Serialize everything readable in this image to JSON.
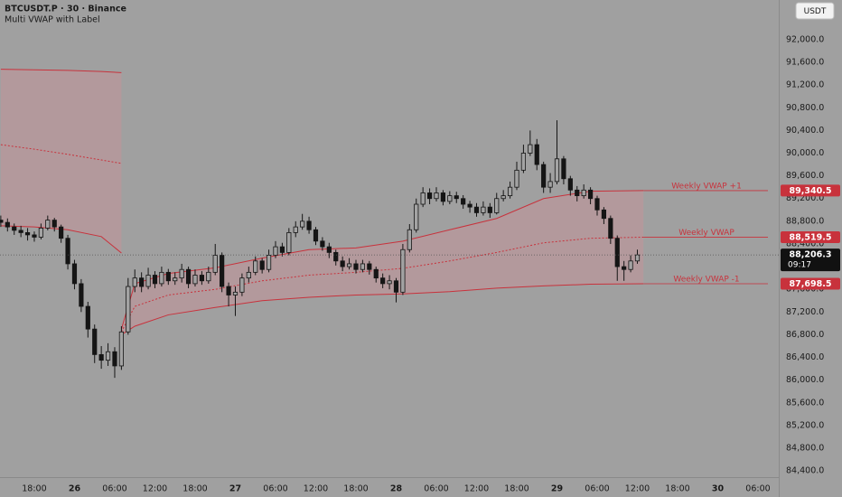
{
  "chart_data": {
    "type": "candlestick",
    "title": "BTCUSDT.P · 30 · Binance",
    "subtitle": "Multi VWAP with Label",
    "currency_button": "USDT",
    "candle_color": "#151515",
    "up_fill": "#a3a3a3",
    "background": "#a0a0a0",
    "band_color": "#c8323c",
    "band_fill": "#b9979b",
    "grid": false,
    "xlim": [
      12.88,
      129.1
    ],
    "ylim": [
      84290,
      92700
    ],
    "xticks": [
      {
        "value": 18,
        "label": "18:00"
      },
      {
        "value": 24,
        "label": "26"
      },
      {
        "value": 30,
        "label": "06:00"
      },
      {
        "value": 36,
        "label": "12:00"
      },
      {
        "value": 42,
        "label": "18:00"
      },
      {
        "value": 48,
        "label": "27"
      },
      {
        "value": 54,
        "label": "06:00"
      },
      {
        "value": 60,
        "label": "12:00"
      },
      {
        "value": 66,
        "label": "18:00"
      },
      {
        "value": 72,
        "label": "28"
      },
      {
        "value": 78,
        "label": "06:00"
      },
      {
        "value": 84,
        "label": "12:00"
      },
      {
        "value": 90,
        "label": "18:00"
      },
      {
        "value": 96,
        "label": "29"
      },
      {
        "value": 102,
        "label": "06:00"
      },
      {
        "value": 108,
        "label": "12:00"
      },
      {
        "value": 114,
        "label": "18:00"
      },
      {
        "value": 120,
        "label": "30"
      },
      {
        "value": 126,
        "label": "06:00"
      }
    ],
    "day_ticks": [
      1,
      5,
      9,
      13,
      17
    ],
    "yticks": [
      {
        "value": 84400,
        "label": "84,400.0"
      },
      {
        "value": 84800,
        "label": "84,800.0"
      },
      {
        "value": 85200,
        "label": "85,200.0"
      },
      {
        "value": 85600,
        "label": "85,600.0"
      },
      {
        "value": 86000,
        "label": "86,000.0"
      },
      {
        "value": 86400,
        "label": "86,400.0"
      },
      {
        "value": 86800,
        "label": "86,800.0"
      },
      {
        "value": 87200,
        "label": "87,200.0"
      },
      {
        "value": 87600,
        "label": "87,600.0"
      },
      {
        "value": 88000,
        "label": "88,000.0"
      },
      {
        "value": 88400,
        "label": "88,400.0"
      },
      {
        "value": 88800,
        "label": "88,800.0"
      },
      {
        "value": 89200,
        "label": "89,200.0"
      },
      {
        "value": 89600,
        "label": "89,600.0"
      },
      {
        "value": 90000,
        "label": "90,000.0"
      },
      {
        "value": 90400,
        "label": "90,400.0"
      },
      {
        "value": 90800,
        "label": "90,800.0"
      },
      {
        "value": 91200,
        "label": "91,200.0"
      },
      {
        "value": 91600,
        "label": "91,600.0"
      },
      {
        "value": 92000,
        "label": "92,000.0"
      }
    ],
    "x": [
      13,
      14,
      15,
      16,
      17,
      18,
      19,
      20,
      21,
      22,
      23,
      24,
      25,
      26,
      27,
      28,
      29,
      30,
      31,
      32,
      33,
      34,
      35,
      36,
      37,
      38,
      39,
      40,
      41,
      42,
      43,
      44,
      45,
      46,
      47,
      48,
      49,
      50,
      51,
      52,
      53,
      54,
      55,
      56,
      57,
      58,
      59,
      60,
      61,
      62,
      63,
      64,
      65,
      66,
      67,
      68,
      69,
      70,
      71,
      72,
      73,
      74,
      75,
      76,
      77,
      78,
      79,
      80,
      81,
      82,
      83,
      84,
      85,
      86,
      87,
      88,
      89,
      90,
      91,
      92,
      93,
      94,
      95,
      96,
      97,
      98,
      99,
      100,
      101,
      102,
      103,
      104,
      105,
      106,
      107,
      108
    ],
    "open": [
      88820,
      88780,
      88700,
      88640,
      88600,
      88560,
      88520,
      88680,
      88820,
      88700,
      88500,
      88050,
      87700,
      87300,
      86900,
      86450,
      86350,
      86500,
      86250,
      86850,
      87650,
      87800,
      87650,
      87850,
      87700,
      87900,
      87750,
      87800,
      87950,
      87700,
      87850,
      87750,
      87900,
      88200,
      87650,
      87500,
      87550,
      87800,
      87900,
      88100,
      87950,
      88200,
      88350,
      88250,
      88600,
      88700,
      88800,
      88650,
      88450,
      88350,
      88250,
      88100,
      88000,
      88050,
      87950,
      88050,
      87950,
      87800,
      87700,
      87750,
      87550,
      88300,
      88650,
      89100,
      89300,
      89200,
      89300,
      89150,
      89250,
      89200,
      89100,
      89050,
      88950,
      89050,
      88950,
      89200,
      89250,
      89400,
      89700,
      90000,
      90150,
      89800,
      89400,
      89500,
      89900,
      89550,
      89350,
      89250,
      89350,
      89200,
      89000,
      88850,
      88500,
      88000,
      87950,
      88100
    ],
    "high": [
      88900,
      88850,
      88760,
      88720,
      88680,
      88620,
      88760,
      88900,
      88860,
      88740,
      88560,
      88120,
      87780,
      87380,
      86980,
      86600,
      86650,
      86580,
      86950,
      87800,
      87950,
      87900,
      87980,
      87920,
      88000,
      87960,
      87900,
      88050,
      88000,
      87950,
      87920,
      88000,
      88400,
      88250,
      87720,
      87650,
      87880,
      88000,
      88180,
      88150,
      88300,
      88450,
      88420,
      88680,
      88800,
      88930,
      88880,
      88700,
      88520,
      88420,
      88300,
      88180,
      88150,
      88120,
      88120,
      88100,
      88000,
      87880,
      87850,
      87800,
      88400,
      88750,
      89200,
      89400,
      89380,
      89400,
      89350,
      89330,
      89320,
      89260,
      89160,
      89120,
      89150,
      89120,
      89300,
      89350,
      89500,
      89850,
      90150,
      90400,
      90250,
      89850,
      89650,
      90580,
      89950,
      89600,
      89420,
      89450,
      89400,
      89250,
      89050,
      88900,
      88550,
      88100,
      88200,
      88300
    ],
    "low": [
      88700,
      88620,
      88560,
      88520,
      88460,
      88440,
      88480,
      88640,
      88620,
      88420,
      87950,
      87600,
      87200,
      86750,
      86300,
      86200,
      86250,
      86040,
      86180,
      86800,
      87550,
      87550,
      87600,
      87620,
      87650,
      87680,
      87680,
      87720,
      87620,
      87650,
      87680,
      87700,
      87850,
      87550,
      87300,
      87130,
      87480,
      87720,
      87850,
      87880,
      87900,
      88150,
      88180,
      88200,
      88520,
      88650,
      88580,
      88380,
      88280,
      88150,
      88020,
      87920,
      87950,
      87880,
      87900,
      87860,
      87720,
      87620,
      87600,
      87370,
      87500,
      88250,
      88600,
      89050,
      89100,
      89150,
      89080,
      89100,
      89120,
      89020,
      88950,
      88880,
      88900,
      88860,
      88920,
      89150,
      89200,
      89350,
      89650,
      89950,
      89700,
      89300,
      89300,
      89450,
      89450,
      89250,
      89150,
      89200,
      89100,
      88900,
      88750,
      88400,
      87750,
      87750,
      87900,
      88050
    ],
    "close": [
      88780,
      88700,
      88640,
      88600,
      88560,
      88520,
      88680,
      88820,
      88700,
      88500,
      88050,
      87700,
      87300,
      86900,
      86450,
      86350,
      86500,
      86250,
      86850,
      87650,
      87800,
      87650,
      87850,
      87700,
      87900,
      87750,
      87800,
      87950,
      87700,
      87850,
      87750,
      87900,
      88200,
      87650,
      87500,
      87550,
      87800,
      87900,
      88100,
      87950,
      88200,
      88350,
      88250,
      88600,
      88700,
      88800,
      88650,
      88450,
      88350,
      88250,
      88100,
      88000,
      88050,
      87950,
      88050,
      87950,
      87800,
      87700,
      87750,
      87550,
      88300,
      88650,
      89100,
      89300,
      89200,
      89300,
      89150,
      89250,
      89200,
      89100,
      89050,
      88950,
      89050,
      88950,
      89200,
      89250,
      89400,
      89700,
      90000,
      90150,
      89800,
      89400,
      89500,
      89900,
      89550,
      89350,
      89250,
      89350,
      89200,
      89000,
      88850,
      88500,
      88000,
      87950,
      88100,
      88206.3
    ],
    "last_price": {
      "value": 88206.3,
      "label": "88,206.3",
      "countdown": "09:17"
    },
    "bands": [
      {
        "x": [
          13,
          18,
          23,
          28,
          31
        ],
        "upper": [
          91480,
          91470,
          91460,
          91440,
          91420
        ],
        "vwap": [
          90150,
          90070,
          89980,
          89880,
          89820
        ],
        "lower": [
          88720,
          88700,
          88650,
          88530,
          88240
        ]
      },
      {
        "x": [
          31,
          33,
          38,
          45,
          52,
          59,
          66,
          73,
          80,
          87,
          94,
          101,
          108.9
        ],
        "upper": [
          86900,
          87700,
          87880,
          87980,
          88150,
          88300,
          88330,
          88450,
          88650,
          88850,
          89200,
          89330,
          89340.5
        ],
        "vwap": [
          86850,
          87300,
          87500,
          87600,
          87750,
          87850,
          87900,
          87970,
          88100,
          88250,
          88420,
          88500,
          88519.5
        ],
        "lower": [
          86800,
          86950,
          87150,
          87280,
          87400,
          87460,
          87500,
          87520,
          87560,
          87620,
          87660,
          87690,
          87698.5
        ],
        "line_labels": [
          "Weekly VWAP +1",
          "Weekly VWAP",
          "Weekly VWAP -1"
        ],
        "price_tags": [
          {
            "value": 89340.5,
            "label": "89,340.5"
          },
          {
            "value": 88519.5,
            "label": "88,519.5"
          },
          {
            "value": 87698.5,
            "label": "87,698.5"
          }
        ]
      }
    ]
  }
}
